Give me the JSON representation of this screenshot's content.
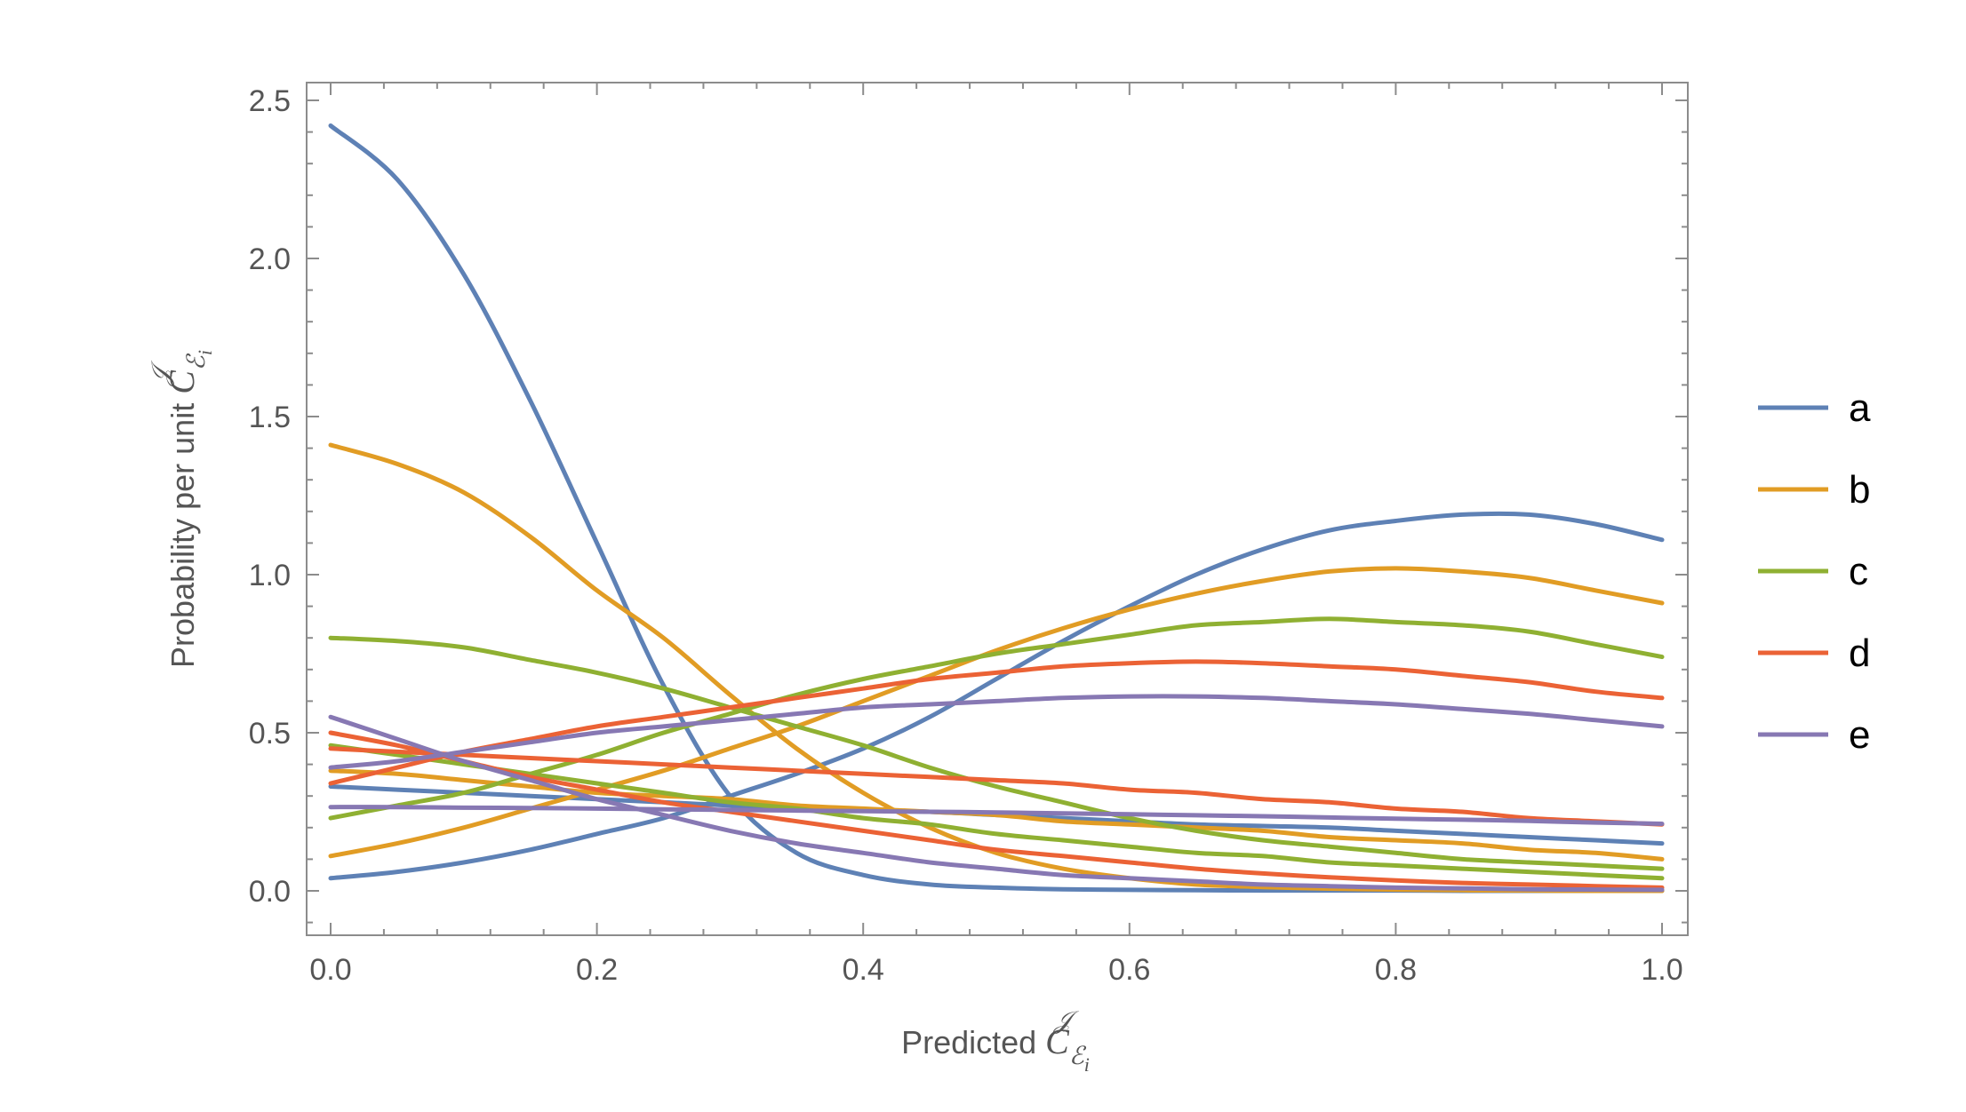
{
  "chart_data": {
    "type": "line",
    "xlabel": {
      "prefix": "Predicted ",
      "symbol": "C",
      "sub": "ℰ",
      "subsub": "i",
      "sup": "𝒥"
    },
    "ylabel": {
      "prefix": "Probability per unit ",
      "symbol": "C",
      "sub": "ℰ",
      "subsub": "i",
      "sup": "𝒥"
    },
    "xlim": [
      0,
      1
    ],
    "ylim": [
      -0.13,
      2.55
    ],
    "xticks": [
      0,
      0.2,
      0.4,
      0.6,
      0.8,
      1.0
    ],
    "xtick_labels": [
      "0.0",
      "0.2",
      "0.4",
      "0.6",
      "0.8",
      "1.0"
    ],
    "yticks": [
      0,
      0.5,
      1.0,
      1.5,
      2.0,
      2.5
    ],
    "ytick_labels": [
      "0.0",
      "0.5",
      "1.0",
      "1.5",
      "2.0",
      "2.5"
    ],
    "grid": false,
    "legend_position": "right",
    "x": [
      0,
      0.05,
      0.1,
      0.15,
      0.2,
      0.25,
      0.3,
      0.35,
      0.4,
      0.45,
      0.5,
      0.55,
      0.6,
      0.65,
      0.7,
      0.75,
      0.8,
      0.85,
      0.9,
      0.95,
      1.0
    ],
    "series": [
      {
        "name": "a",
        "color": "#5e81b5",
        "curves": [
          [
            2.42,
            2.25,
            1.95,
            1.55,
            1.1,
            0.65,
            0.3,
            0.12,
            0.05,
            0.02,
            0.01,
            0.005,
            0.003,
            0.002,
            0.001,
            0.001,
            0.001,
            0.0,
            0.0,
            0.0,
            0.0
          ],
          [
            0.04,
            0.06,
            0.09,
            0.13,
            0.18,
            0.23,
            0.3,
            0.37,
            0.45,
            0.55,
            0.67,
            0.79,
            0.9,
            1.0,
            1.08,
            1.14,
            1.17,
            1.19,
            1.19,
            1.16,
            1.11
          ],
          [
            0.33,
            0.32,
            0.31,
            0.3,
            0.29,
            0.28,
            0.27,
            0.26,
            0.255,
            0.25,
            0.24,
            0.23,
            0.22,
            0.21,
            0.205,
            0.2,
            0.19,
            0.18,
            0.17,
            0.16,
            0.15
          ]
        ]
      },
      {
        "name": "b",
        "color": "#e19c24",
        "curves": [
          [
            1.41,
            1.35,
            1.26,
            1.12,
            0.95,
            0.8,
            0.62,
            0.45,
            0.31,
            0.2,
            0.12,
            0.07,
            0.04,
            0.02,
            0.012,
            0.007,
            0.004,
            0.002,
            0.001,
            0.0,
            0.0
          ],
          [
            0.11,
            0.15,
            0.2,
            0.26,
            0.32,
            0.38,
            0.45,
            0.52,
            0.6,
            0.68,
            0.76,
            0.83,
            0.89,
            0.94,
            0.98,
            1.01,
            1.02,
            1.01,
            0.99,
            0.95,
            0.91
          ],
          [
            0.38,
            0.37,
            0.35,
            0.33,
            0.31,
            0.3,
            0.29,
            0.27,
            0.26,
            0.25,
            0.24,
            0.22,
            0.21,
            0.2,
            0.19,
            0.17,
            0.16,
            0.15,
            0.13,
            0.12,
            0.1
          ]
        ]
      },
      {
        "name": "c",
        "color": "#8fb032",
        "curves": [
          [
            0.8,
            0.79,
            0.77,
            0.73,
            0.69,
            0.64,
            0.58,
            0.52,
            0.46,
            0.39,
            0.33,
            0.28,
            0.23,
            0.19,
            0.16,
            0.14,
            0.12,
            0.1,
            0.09,
            0.08,
            0.07
          ],
          [
            0.23,
            0.27,
            0.31,
            0.37,
            0.43,
            0.5,
            0.56,
            0.62,
            0.67,
            0.71,
            0.75,
            0.78,
            0.81,
            0.84,
            0.85,
            0.86,
            0.85,
            0.84,
            0.82,
            0.78,
            0.74
          ],
          [
            0.46,
            0.43,
            0.4,
            0.37,
            0.34,
            0.31,
            0.28,
            0.26,
            0.23,
            0.21,
            0.18,
            0.16,
            0.14,
            0.12,
            0.11,
            0.09,
            0.08,
            0.07,
            0.06,
            0.05,
            0.04
          ]
        ]
      },
      {
        "name": "d",
        "color": "#eb6235",
        "curves": [
          [
            0.5,
            0.46,
            0.41,
            0.36,
            0.32,
            0.28,
            0.25,
            0.22,
            0.19,
            0.16,
            0.13,
            0.11,
            0.09,
            0.07,
            0.055,
            0.043,
            0.033,
            0.025,
            0.02,
            0.015,
            0.01
          ],
          [
            0.34,
            0.39,
            0.44,
            0.48,
            0.52,
            0.55,
            0.58,
            0.61,
            0.64,
            0.67,
            0.69,
            0.71,
            0.72,
            0.725,
            0.72,
            0.71,
            0.7,
            0.68,
            0.66,
            0.63,
            0.61
          ],
          [
            0.45,
            0.44,
            0.43,
            0.42,
            0.41,
            0.4,
            0.39,
            0.38,
            0.37,
            0.36,
            0.35,
            0.34,
            0.32,
            0.31,
            0.29,
            0.28,
            0.26,
            0.25,
            0.23,
            0.22,
            0.21
          ]
        ]
      },
      {
        "name": "e",
        "color": "#8778b3",
        "curves": [
          [
            0.55,
            0.48,
            0.41,
            0.35,
            0.29,
            0.24,
            0.19,
            0.15,
            0.12,
            0.09,
            0.07,
            0.05,
            0.04,
            0.03,
            0.02,
            0.015,
            0.01,
            0.008,
            0.005,
            0.004,
            0.003
          ],
          [
            0.39,
            0.41,
            0.44,
            0.47,
            0.5,
            0.52,
            0.54,
            0.56,
            0.58,
            0.59,
            0.6,
            0.61,
            0.615,
            0.615,
            0.61,
            0.6,
            0.59,
            0.575,
            0.56,
            0.54,
            0.52
          ],
          [
            0.265,
            0.265,
            0.263,
            0.262,
            0.26,
            0.258,
            0.256,
            0.254,
            0.252,
            0.25,
            0.248,
            0.245,
            0.242,
            0.239,
            0.236,
            0.232,
            0.228,
            0.225,
            0.221,
            0.216,
            0.212
          ]
        ]
      }
    ]
  }
}
